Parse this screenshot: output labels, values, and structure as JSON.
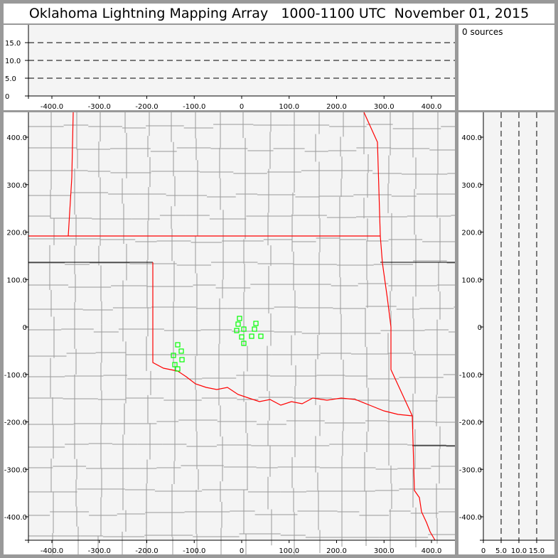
{
  "title": "Oklahoma Lightning Mapping Array   1000-1100 UTC  November 01, 2015",
  "info": {
    "sources_label": "0 sources"
  },
  "colors": {
    "sources": "#00ff00",
    "state_border": "#ff0000",
    "county": "#999999",
    "plot_bg": "#f4f4f4"
  },
  "chart_data": [
    {
      "type": "scatter",
      "panel": "altitude-vs-east-west",
      "xlim": [
        -460,
        440
      ],
      "ylim": [
        0,
        20
      ],
      "xticks": [
        "-400.0",
        "-300.0",
        "-200.0",
        "-100.0",
        "0",
        "100.0",
        "200.0",
        "300.0",
        "400.0"
      ],
      "xtick_values": [
        -400,
        -300,
        -200,
        -100,
        0,
        100,
        200,
        300,
        400
      ],
      "yticks": [
        "0",
        "5.0",
        "10.0",
        "15.0"
      ],
      "ytick_values": [
        0,
        5,
        10,
        15
      ],
      "grid": "dashed horizontal at 5, 10, 15",
      "points": []
    },
    {
      "type": "scatter",
      "panel": "plan-view-map",
      "xlim": [
        -460,
        440
      ],
      "ylim": [
        -450,
        450
      ],
      "xticks": [
        "-400.0",
        "-300.0",
        "-200.0",
        "-100.0",
        "0",
        "100.0",
        "200.0",
        "300.0",
        "400.0"
      ],
      "xtick_values": [
        -400,
        -300,
        -200,
        -100,
        0,
        100,
        200,
        300,
        400
      ],
      "yticks": [
        "400.0",
        "300.0",
        "200.0",
        "100.0",
        "0",
        "-100.0",
        "-200.0",
        "-300.0",
        "-400.0"
      ],
      "ytick_values": [
        400,
        300,
        200,
        100,
        0,
        -100,
        -200,
        -300,
        -400
      ],
      "marker": "open-square",
      "points": [
        [
          -4.5,
          18.0
        ],
        [
          -7.5,
          6.0
        ],
        [
          30.0,
          7.5
        ],
        [
          -10.5,
          -7.5
        ],
        [
          4.5,
          -4.5
        ],
        [
          27.0,
          -4.5
        ],
        [
          0.0,
          -21.0
        ],
        [
          21.0,
          -19.5
        ],
        [
          40.4,
          -19.5
        ],
        [
          4.5,
          -34.5
        ],
        [
          -134.8,
          -37.5
        ],
        [
          -127.3,
          -50.9
        ],
        [
          -143.8,
          -59.9
        ],
        [
          -125.8,
          -68.9
        ],
        [
          -140.8,
          -79.4
        ],
        [
          -134.8,
          -88.4
        ]
      ]
    },
    {
      "type": "scatter",
      "panel": "north-south-vs-altitude",
      "xlim": [
        0,
        20
      ],
      "ylim": [
        -450,
        450
      ],
      "xticks": [
        "0",
        "5.0",
        "10.0",
        "15.0"
      ],
      "xtick_values": [
        0,
        5,
        10,
        15
      ],
      "yticks": [
        "400.0",
        "300.0",
        "200.0",
        "100.0",
        "0",
        "-100.0",
        "-200.0",
        "-300.0",
        "-400.0"
      ],
      "ytick_values": [
        400,
        300,
        200,
        100,
        0,
        -100,
        -200,
        -300,
        -400
      ],
      "grid": "dashed vertical at 5, 10, 15",
      "points": []
    }
  ]
}
